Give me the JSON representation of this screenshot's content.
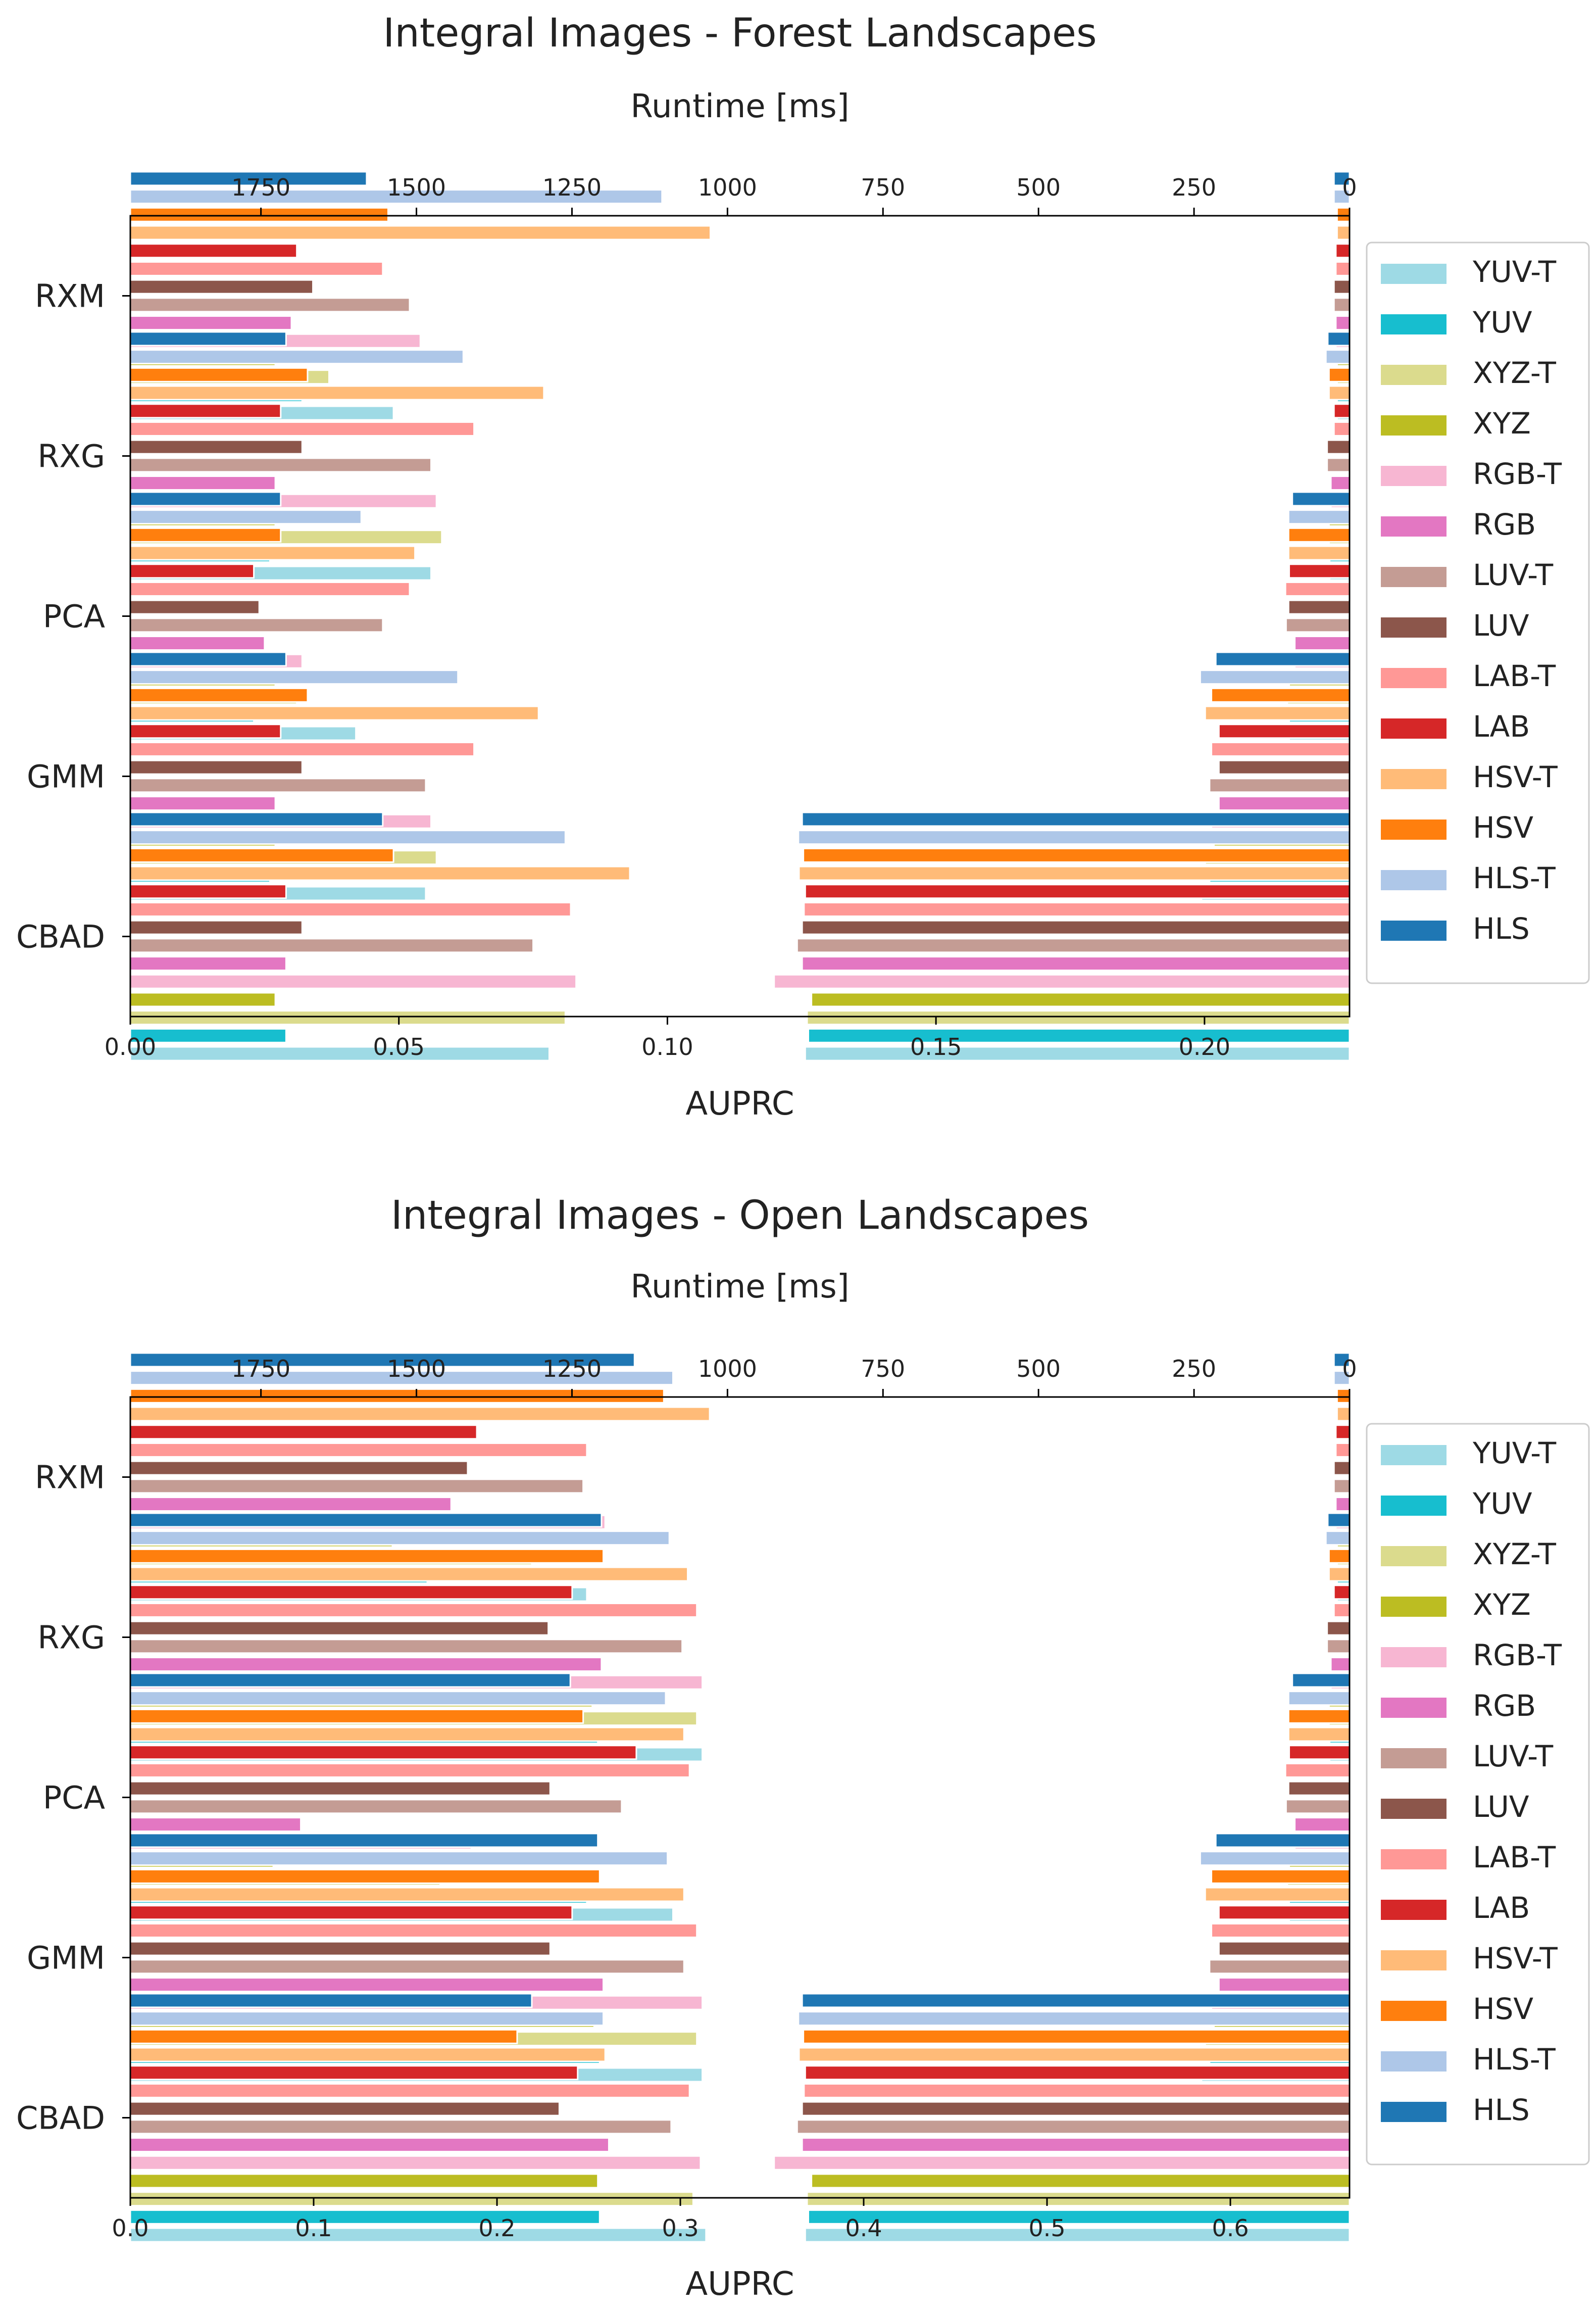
{
  "legend_order": [
    "YUV-T",
    "YUV",
    "XYZ-T",
    "XYZ",
    "RGB-T",
    "RGB",
    "LUV-T",
    "LUV",
    "LAB-T",
    "LAB",
    "HSV-T",
    "HSV",
    "HLS-T",
    "HLS"
  ],
  "colors": {
    "YUV-T": "#9edae5",
    "YUV": "#17becf",
    "XYZ-T": "#dbdb8d",
    "XYZ": "#bcbd22",
    "RGB-T": "#f7b6d2",
    "RGB": "#e377c2",
    "LUV-T": "#c49c94",
    "LUV": "#8c564b",
    "LAB-T": "#ff9896",
    "LAB": "#d62728",
    "HSV-T": "#ffbb78",
    "HSV": "#ff7f0e",
    "HLS-T": "#aec7e8",
    "HLS": "#1f77b4"
  },
  "chart_data": [
    {
      "type": "bar",
      "orientation": "horizontal",
      "title": "Integral Images - Forest Landscapes",
      "xlabel": "AUPRC",
      "top_axis_label": "Runtime [ms]",
      "xlim": [
        0,
        0.227
      ],
      "x_ticks": [
        0.0,
        0.05,
        0.1,
        0.15,
        0.2
      ],
      "x_tick_labels": [
        "0.00",
        "0.05",
        "0.10",
        "0.15",
        "0.20"
      ],
      "runtime_lim": [
        1960,
        0
      ],
      "runtime_ticks": [
        1750,
        1500,
        1250,
        1000,
        750,
        500,
        250,
        0
      ],
      "runtime_tick_labels": [
        "1750",
        "1500",
        "1250",
        "1000",
        "750",
        "500",
        "250",
        "0"
      ],
      "categories": [
        "RXM",
        "RXG",
        "PCA",
        "GMM",
        "CBAD"
      ],
      "auprc": {
        "RXM": {
          "YUV": 0.032,
          "YUV-T": 0.049,
          "XYZ": 0.027,
          "XYZ-T": 0.037,
          "RGB": 0.03,
          "RGB-T": 0.054,
          "LUV": 0.034,
          "LUV-T": 0.052,
          "LAB": 0.031,
          "LAB-T": 0.047,
          "HSV": 0.048,
          "HSV-T": 0.108,
          "HLS": 0.044,
          "HLS-T": 0.099
        },
        "RXG": {
          "YUV": 0.026,
          "YUV-T": 0.056,
          "XYZ": 0.027,
          "XYZ-T": 0.058,
          "RGB": 0.027,
          "RGB-T": 0.057,
          "LUV": 0.032,
          "LUV-T": 0.056,
          "LAB": 0.028,
          "LAB-T": 0.064,
          "HSV": 0.033,
          "HSV-T": 0.077,
          "HLS": 0.029,
          "HLS-T": 0.062
        },
        "PCA": {
          "YUV": 0.023,
          "YUV-T": 0.042,
          "XYZ": 0.027,
          "XYZ-T": 0.031,
          "RGB": 0.025,
          "RGB-T": 0.032,
          "LUV": 0.024,
          "LUV-T": 0.047,
          "LAB": 0.023,
          "LAB-T": 0.052,
          "HSV": 0.028,
          "HSV-T": 0.053,
          "HLS": 0.028,
          "HLS-T": 0.043
        },
        "GMM": {
          "YUV": 0.026,
          "YUV-T": 0.055,
          "XYZ": 0.027,
          "XYZ-T": 0.057,
          "RGB": 0.027,
          "RGB-T": 0.056,
          "LUV": 0.032,
          "LUV-T": 0.055,
          "LAB": 0.028,
          "LAB-T": 0.064,
          "HSV": 0.033,
          "HSV-T": 0.076,
          "HLS": 0.029,
          "HLS-T": 0.061
        },
        "CBAD": {
          "YUV": 0.029,
          "YUV-T": 0.078,
          "XYZ": 0.027,
          "XYZ-T": 0.081,
          "RGB": 0.029,
          "RGB-T": 0.083,
          "LUV": 0.032,
          "LUV-T": 0.075,
          "LAB": 0.029,
          "LAB-T": 0.082,
          "HSV": 0.049,
          "HSV-T": 0.093,
          "HLS": 0.047,
          "HLS-T": 0.081
        }
      },
      "runtime_ms": {
        "RXM": {
          "YUV": 20,
          "YUV-T": 20,
          "XYZ": 20,
          "XYZ-T": 20,
          "RGB": 22,
          "RGB-T": 22,
          "LUV": 25,
          "LUV-T": 25,
          "LAB": 22,
          "LAB-T": 22,
          "HSV": 20,
          "HSV-T": 20,
          "HLS": 25,
          "HLS-T": 25
        },
        "RXG": {
          "YUV": 32,
          "YUV-T": 32,
          "XYZ": 33,
          "XYZ-T": 33,
          "RGB": 30,
          "RGB-T": 30,
          "LUV": 36,
          "LUV-T": 36,
          "LAB": 25,
          "LAB-T": 25,
          "HSV": 33,
          "HSV-T": 33,
          "HLS": 35,
          "HLS-T": 38
        },
        "PCA": {
          "YUV": 97,
          "YUV-T": 97,
          "XYZ": 97,
          "XYZ-T": 100,
          "RGB": 88,
          "RGB-T": 88,
          "LUV": 98,
          "LUV-T": 102,
          "LAB": 97,
          "LAB-T": 103,
          "HSV": 98,
          "HSV-T": 98,
          "HLS": 92,
          "HLS-T": 98
        },
        "GMM": {
          "YUV": 225,
          "YUV-T": 238,
          "XYZ": 218,
          "XYZ-T": 232,
          "RGB": 210,
          "RGB-T": 222,
          "LUV": 210,
          "LUV-T": 225,
          "LAB": 210,
          "LAB-T": 222,
          "HSV": 222,
          "HSV-T": 232,
          "HLS": 215,
          "HLS-T": 240
        },
        "CBAD": {
          "YUV": 870,
          "YUV-T": 875,
          "XYZ": 865,
          "XYZ-T": 872,
          "RGB": 880,
          "RGB-T": 925,
          "LUV": 880,
          "LUV-T": 888,
          "LAB": 875,
          "LAB-T": 877,
          "HSV": 878,
          "HSV-T": 885,
          "HLS": 880,
          "HLS-T": 886
        }
      }
    },
    {
      "type": "bar",
      "orientation": "horizontal",
      "title": "Integral Images - Open Landscapes",
      "xlabel": "AUPRC",
      "top_axis_label": "Runtime [ms]",
      "xlim": [
        0,
        0.665
      ],
      "x_ticks": [
        0.0,
        0.1,
        0.2,
        0.3,
        0.4,
        0.5,
        0.6
      ],
      "x_tick_labels": [
        "0.0",
        "0.1",
        "0.2",
        "0.3",
        "0.4",
        "0.5",
        "0.6"
      ],
      "runtime_lim": [
        1960,
        0
      ],
      "runtime_ticks": [
        1750,
        1500,
        1250,
        1000,
        750,
        500,
        250,
        0
      ],
      "runtime_tick_labels": [
        "1750",
        "1500",
        "1250",
        "1000",
        "750",
        "500",
        "250",
        "0"
      ],
      "categories": [
        "RXM",
        "RXG",
        "PCA",
        "GMM",
        "CBAD"
      ],
      "auprc": {
        "RXM": {
          "YUV": 0.162,
          "YUV-T": 0.249,
          "XYZ": 0.143,
          "XYZ-T": 0.219,
          "RGB": 0.175,
          "RGB-T": 0.259,
          "LUV": 0.184,
          "LUV-T": 0.247,
          "LAB": 0.189,
          "LAB-T": 0.249,
          "HSV": 0.291,
          "HSV-T": 0.316,
          "HLS": 0.275,
          "HLS-T": 0.296
        },
        "RXG": {
          "YUV": 0.255,
          "YUV-T": 0.312,
          "XYZ": 0.252,
          "XYZ-T": 0.309,
          "RGB": 0.257,
          "RGB-T": 0.312,
          "LUV": 0.228,
          "LUV-T": 0.301,
          "LAB": 0.241,
          "LAB-T": 0.309,
          "HSV": 0.258,
          "HSV-T": 0.304,
          "HLS": 0.257,
          "HLS-T": 0.294
        },
        "PCA": {
          "YUV": 0.249,
          "YUV-T": 0.296,
          "XYZ": 0.078,
          "XYZ-T": 0.169,
          "RGB": 0.093,
          "RGB-T": 0.186,
          "LUV": 0.229,
          "LUV-T": 0.268,
          "LAB": 0.276,
          "LAB-T": 0.305,
          "HSV": 0.247,
          "HSV-T": 0.302,
          "HLS": 0.24,
          "HLS-T": 0.292
        },
        "GMM": {
          "YUV": 0.256,
          "YUV-T": 0.312,
          "XYZ": 0.253,
          "XYZ-T": 0.309,
          "RGB": 0.258,
          "RGB-T": 0.312,
          "LUV": 0.229,
          "LUV-T": 0.302,
          "LAB": 0.241,
          "LAB-T": 0.309,
          "HSV": 0.256,
          "HSV-T": 0.302,
          "HLS": 0.255,
          "HLS-T": 0.293
        },
        "CBAD": {
          "YUV": 0.256,
          "YUV-T": 0.314,
          "XYZ": 0.255,
          "XYZ-T": 0.307,
          "RGB": 0.261,
          "RGB-T": 0.311,
          "LUV": 0.234,
          "LUV-T": 0.295,
          "LAB": 0.244,
          "LAB-T": 0.305,
          "HSV": 0.211,
          "HSV-T": 0.259,
          "HLS": 0.219,
          "HLS-T": 0.258
        }
      },
      "runtime_ms": {
        "RXM": {
          "YUV": 20,
          "YUV-T": 20,
          "XYZ": 20,
          "XYZ-T": 20,
          "RGB": 22,
          "RGB-T": 22,
          "LUV": 25,
          "LUV-T": 25,
          "LAB": 22,
          "LAB-T": 22,
          "HSV": 20,
          "HSV-T": 20,
          "HLS": 25,
          "HLS-T": 25
        },
        "RXG": {
          "YUV": 32,
          "YUV-T": 32,
          "XYZ": 33,
          "XYZ-T": 33,
          "RGB": 30,
          "RGB-T": 30,
          "LUV": 36,
          "LUV-T": 36,
          "LAB": 25,
          "LAB-T": 25,
          "HSV": 33,
          "HSV-T": 33,
          "HLS": 35,
          "HLS-T": 38
        },
        "PCA": {
          "YUV": 97,
          "YUV-T": 97,
          "XYZ": 97,
          "XYZ-T": 100,
          "RGB": 88,
          "RGB-T": 88,
          "LUV": 98,
          "LUV-T": 102,
          "LAB": 97,
          "LAB-T": 103,
          "HSV": 98,
          "HSV-T": 98,
          "HLS": 92,
          "HLS-T": 98
        },
        "GMM": {
          "YUV": 225,
          "YUV-T": 238,
          "XYZ": 218,
          "XYZ-T": 232,
          "RGB": 210,
          "RGB-T": 222,
          "LUV": 210,
          "LUV-T": 225,
          "LAB": 210,
          "LAB-T": 222,
          "HSV": 222,
          "HSV-T": 232,
          "HLS": 215,
          "HLS-T": 240
        },
        "CBAD": {
          "YUV": 870,
          "YUV-T": 875,
          "XYZ": 865,
          "XYZ-T": 872,
          "RGB": 880,
          "RGB-T": 925,
          "LUV": 880,
          "LUV-T": 888,
          "LAB": 875,
          "LAB-T": 877,
          "HSV": 878,
          "HSV-T": 885,
          "HLS": 880,
          "HLS-T": 886
        }
      }
    }
  ]
}
